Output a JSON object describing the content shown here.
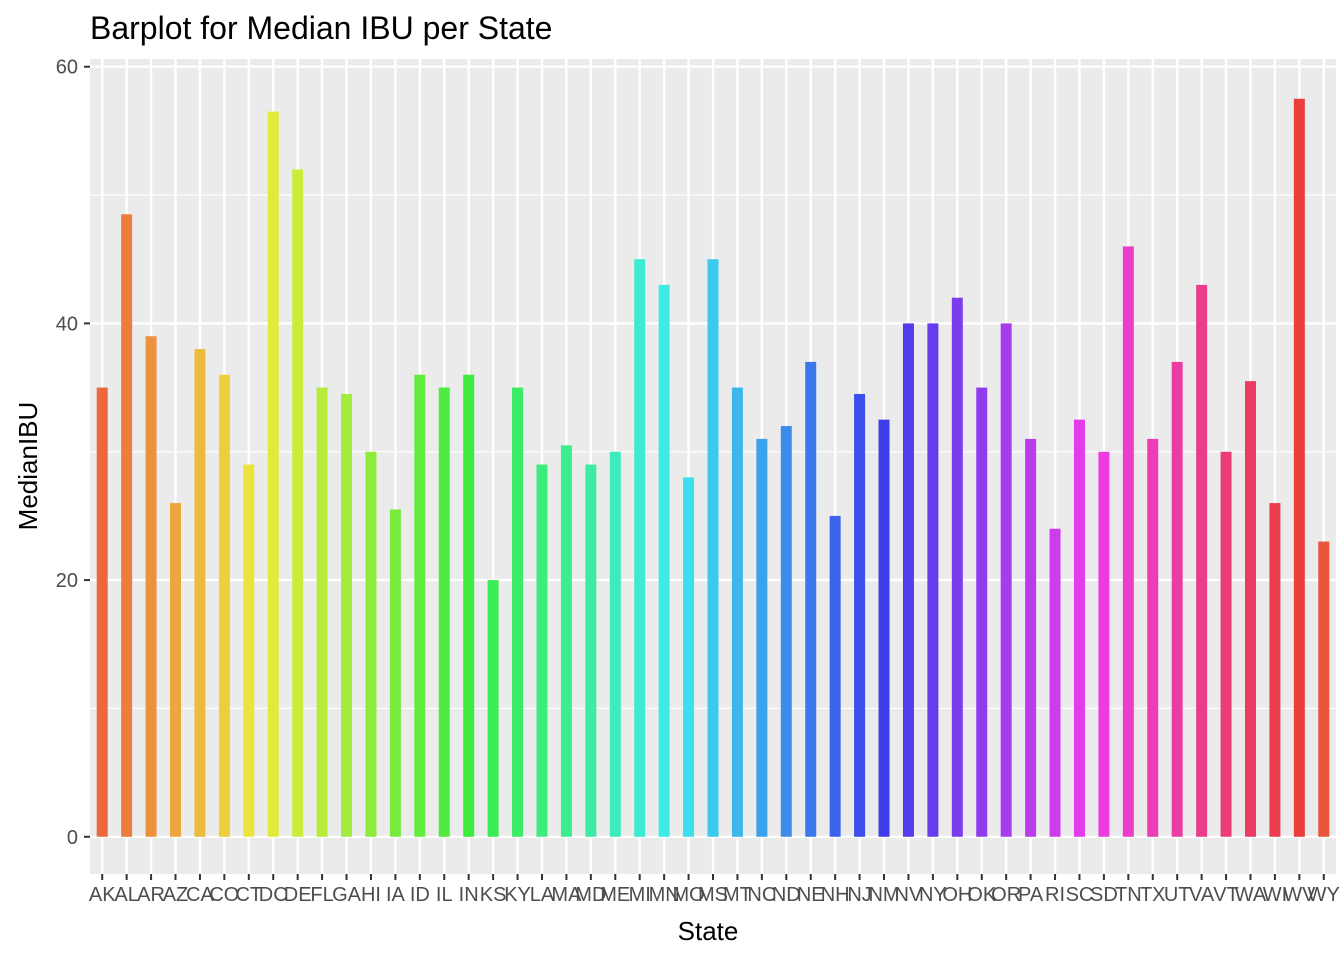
{
  "chart_data": {
    "type": "bar",
    "title": "Barplot for Median IBU per State",
    "xlabel": "State",
    "ylabel": "MedianIBU",
    "ylim": [
      -2.9,
      60.6
    ],
    "yticks": [
      0,
      20,
      40,
      60
    ],
    "grid": true,
    "legend": "none",
    "categories": [
      "AK",
      "AL",
      "AR",
      "AZ",
      "CA",
      "CO",
      "CT",
      "DC",
      "DE",
      "FL",
      "GA",
      "HI",
      "IA",
      "ID",
      "IL",
      "IN",
      "KS",
      "KY",
      "LA",
      "MA",
      "MD",
      "ME",
      "MI",
      "MN",
      "MO",
      "MS",
      "MT",
      "NC",
      "ND",
      "NE",
      "NH",
      "NJ",
      "NM",
      "NV",
      "NY",
      "OH",
      "OK",
      "OR",
      "PA",
      "RI",
      "SC",
      "SD",
      "TN",
      "TX",
      "UT",
      "VA",
      "VT",
      "WA",
      "WI",
      "WV",
      "WY"
    ],
    "values": [
      35,
      48.5,
      39,
      26,
      38,
      36,
      29,
      56.5,
      52,
      35,
      34.5,
      30,
      25.5,
      36,
      35,
      36,
      20,
      35,
      29,
      30.5,
      29,
      30,
      45,
      43,
      28,
      45,
      35,
      31,
      32,
      37,
      25,
      34.5,
      32.5,
      40,
      40,
      42,
      35,
      40,
      31,
      24,
      32.5,
      30,
      46,
      31,
      37,
      43,
      30,
      35.5,
      26,
      57.5,
      23
    ]
  }
}
